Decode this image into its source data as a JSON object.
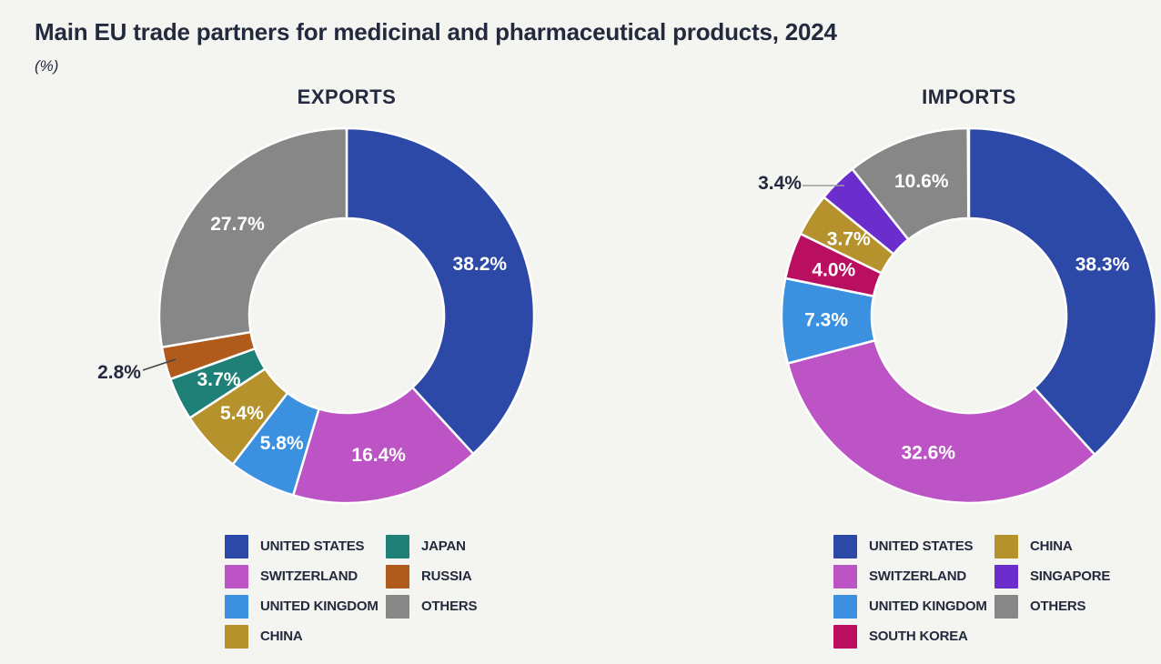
{
  "page": {
    "title": "Main EU trade partners for medicinal and pharmaceutical products, 2024",
    "subtitle": "(%)",
    "background_color": "#f4f4f1",
    "text_color": "#242a3d"
  },
  "chart_data": [
    {
      "type": "pie",
      "variant": "donut",
      "title": "EXPORTS",
      "unit": "%",
      "start_angle_deg": 0,
      "direction": "clockwise",
      "legend_position": "bottom",
      "slices": [
        {
          "label": "UNITED STATES",
          "value": 38.2,
          "color": "#2c49a7"
        },
        {
          "label": "SWITZERLAND",
          "value": 16.4,
          "color": "#bc54c5"
        },
        {
          "label": "UNITED KINGDOM",
          "value": 5.8,
          "color": "#3c90e0"
        },
        {
          "label": "CHINA",
          "value": 5.4,
          "color": "#b5922c"
        },
        {
          "label": "JAPAN",
          "value": 3.7,
          "color": "#1f8077"
        },
        {
          "label": "RUSSIA",
          "value": 2.8,
          "color": "#b05a1c",
          "label_outside": {
            "xy": [
              -40,
              272
            ],
            "line": [
              [
                -14,
                270
              ],
              [
                22,
                258
              ]
            ],
            "line_color": "#454545"
          }
        },
        {
          "label": "OTHERS",
          "value": 27.7,
          "color": "#878787"
        }
      ]
    },
    {
      "type": "pie",
      "variant": "donut",
      "title": "IMPORTS",
      "unit": "%",
      "start_angle_deg": 0,
      "direction": "clockwise",
      "legend_position": "bottom",
      "slices": [
        {
          "label": "UNITED STATES",
          "value": 38.3,
          "color": "#2c49a7"
        },
        {
          "label": "SWITZERLAND",
          "value": 32.6,
          "color": "#bc54c5"
        },
        {
          "label": "UNITED KINGDOM",
          "value": 7.3,
          "color": "#3c90e0"
        },
        {
          "label": "SOUTH KOREA",
          "value": 4.0,
          "color": "#ba0f60"
        },
        {
          "label": "CHINA",
          "value": 3.7,
          "color": "#b5922c"
        },
        {
          "label": "SINGAPORE",
          "value": 3.4,
          "color": "#6c2dcd",
          "label_outside": {
            "xy": [
              2,
              64
            ],
            "line": [
              [
                27,
                67
              ],
              [
                73,
                67
              ]
            ],
            "line_color": "#9b9b9b"
          }
        },
        {
          "label": "OTHERS",
          "value": 10.6,
          "color": "#878787"
        }
      ]
    }
  ]
}
